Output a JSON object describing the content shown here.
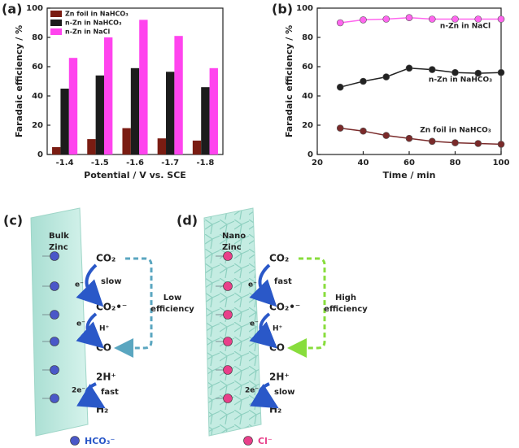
{
  "chart_data": [
    {
      "type": "bar",
      "panel": "(a)",
      "xlabel": "Potential / V vs. SCE",
      "ylabel": "Faradaic efficiency / %",
      "categories": [
        "-1.4",
        "-1.5",
        "-1.6",
        "-1.7",
        "-1.8"
      ],
      "series": [
        {
          "name": "Zn foil in NaHCO₃",
          "color": "#7a1c12",
          "values": [
            5,
            10.5,
            18,
            11,
            9.5
          ]
        },
        {
          "name": "n-Zn in NaHCO₃",
          "color": "#1c1c1c",
          "values": [
            45,
            54,
            59,
            56.5,
            46
          ]
        },
        {
          "name": "n-Zn in NaCl",
          "color": "#ff44ee",
          "values": [
            66,
            80,
            92,
            81,
            59
          ]
        }
      ],
      "ylim": [
        0,
        100
      ],
      "yticks": [
        0,
        20,
        40,
        60,
        80,
        100
      ],
      "legend": "upper left"
    },
    {
      "type": "line",
      "panel": "(b)",
      "xlabel": "Time / min",
      "ylabel": "Faradaic efficiency / %",
      "x": [
        30,
        40,
        50,
        60,
        70,
        80,
        90,
        100
      ],
      "series": [
        {
          "name": "n-Zn in NaCl",
          "color": "#ff66ee",
          "values": [
            90,
            92,
            92.5,
            93.5,
            92.5,
            92.5,
            92.5,
            92.5
          ]
        },
        {
          "name": "n-Zn in NaHCO₃",
          "color": "#222222",
          "values": [
            46,
            50,
            53,
            59,
            58,
            56,
            55.5,
            56
          ]
        },
        {
          "name": "Zn foil in NaHCO₃",
          "color": "#7a2a2a",
          "values": [
            18,
            16,
            13,
            11,
            9,
            8,
            7.5,
            7
          ]
        }
      ],
      "xlim": [
        20,
        100
      ],
      "xticks": [
        20,
        40,
        60,
        80,
        100
      ],
      "ylim": [
        0,
        100
      ],
      "yticks": [
        0,
        20,
        40,
        60,
        80,
        100
      ]
    }
  ],
  "diagrams": [
    {
      "panel": "(c)",
      "electrode": [
        "Bulk",
        "Zinc"
      ],
      "species": [
        "CO₂",
        "CO₂•⁻",
        "CO",
        "2H⁺",
        "H₂"
      ],
      "steps": [
        "slow",
        "fast"
      ],
      "electrons": [
        "e⁻",
        "e⁻",
        "2e⁻"
      ],
      "proton": "H⁺",
      "efficiency": [
        "Low",
        "efficiency"
      ],
      "ion": "HCO₃⁻",
      "ion_color": "#4a58c8",
      "arrow_color": "#5aa6c0"
    },
    {
      "panel": "(d)",
      "electrode": [
        "Nano",
        "Zinc"
      ],
      "species": [
        "CO₂",
        "CO₂•⁻",
        "CO",
        "2H⁺",
        "H₂"
      ],
      "steps": [
        "fast",
        "slow"
      ],
      "electrons": [
        "e⁻",
        "e⁻",
        "2e⁻"
      ],
      "proton": "H⁺",
      "efficiency": [
        "High",
        "efficiency"
      ],
      "ion": "Cl⁻",
      "ion_color": "#e8408a",
      "arrow_color": "#88dd3c"
    }
  ]
}
